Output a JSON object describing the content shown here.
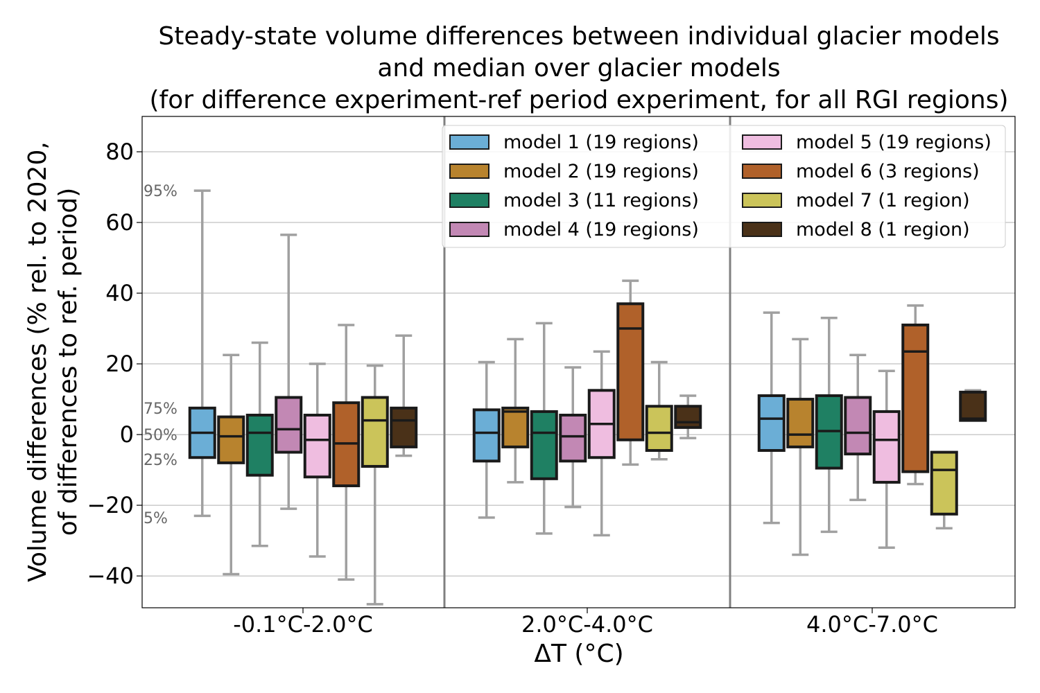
{
  "chart_data": {
    "type": "box",
    "title": [
      "Steady-state volume differences between individual glacier models",
      "and median over glacier models",
      "(for difference experiment-ref period experiment, for all RGI regions)"
    ],
    "xlabel": "ΔT (°C)",
    "ylabel": [
      "Volume differences (% rel. to 2020,",
      "of differences to ref. period)"
    ],
    "ylim": [
      -49,
      90
    ],
    "yticks": [
      80,
      60,
      40,
      20,
      0,
      -20,
      -40
    ],
    "ytick_labels": [
      "80",
      "60",
      "40",
      "20",
      "0",
      "−20",
      "−40"
    ],
    "grid": "horizontal",
    "categories": [
      "-0.1°C-2.0°C",
      "2.0°C-4.0°C",
      "4.0°C-7.0°C"
    ],
    "percentile_labels": [
      {
        "label": "95%",
        "value": 69
      },
      {
        "label": "75%",
        "value": 7.5
      },
      {
        "label": "50%",
        "value": 0
      },
      {
        "label": "25%",
        "value": -7
      },
      {
        "label": "5%",
        "value": -23.5
      }
    ],
    "legend_position": "top-right",
    "series": [
      {
        "name": "model 1 (19 regions)",
        "color": "#6baed6",
        "boxes": [
          {
            "p5": -23,
            "q1": -6.5,
            "median": 0.5,
            "q3": 7.5,
            "p95": 69
          },
          {
            "p5": -23.5,
            "q1": -7.5,
            "median": 0.5,
            "q3": 7,
            "p95": 20.5
          },
          {
            "p5": -25,
            "q1": -4.5,
            "median": 4.5,
            "q3": 11,
            "p95": 34.5
          }
        ]
      },
      {
        "name": "model 2 (19 regions)",
        "color": "#b8832e",
        "boxes": [
          {
            "p5": -39.5,
            "q1": -8,
            "median": -0.5,
            "q3": 5,
            "p95": 22.5
          },
          {
            "p5": -13.5,
            "q1": -3.5,
            "median": 6.5,
            "q3": 7.5,
            "p95": 27
          },
          {
            "p5": -34,
            "q1": -3.5,
            "median": 0,
            "q3": 10,
            "p95": 27
          }
        ]
      },
      {
        "name": "model 3 (11 regions)",
        "color": "#1f8063",
        "boxes": [
          {
            "p5": -31.5,
            "q1": -11.5,
            "median": 0.5,
            "q3": 5.5,
            "p95": 26
          },
          {
            "p5": -28,
            "q1": -12.5,
            "median": 0.5,
            "q3": 6.5,
            "p95": 31.5
          },
          {
            "p5": -27.5,
            "q1": -9.5,
            "median": 1,
            "q3": 11,
            "p95": 33
          }
        ]
      },
      {
        "name": "model 4 (19 regions)",
        "color": "#c288b4",
        "boxes": [
          {
            "p5": -21,
            "q1": -5,
            "median": 1.5,
            "q3": 10.5,
            "p95": 56.5
          },
          {
            "p5": -20.5,
            "q1": -7.5,
            "median": -0.5,
            "q3": 5.5,
            "p95": 19
          },
          {
            "p5": -18.5,
            "q1": -5.5,
            "median": 0.5,
            "q3": 10.5,
            "p95": 22.5
          }
        ]
      },
      {
        "name": "model 5 (19 regions)",
        "color": "#efbde0",
        "boxes": [
          {
            "p5": -34.5,
            "q1": -12,
            "median": -1.5,
            "q3": 5.5,
            "p95": 20
          },
          {
            "p5": -28.5,
            "q1": -6.5,
            "median": 3,
            "q3": 12.5,
            "p95": 23.5
          },
          {
            "p5": -32,
            "q1": -13.5,
            "median": -1.5,
            "q3": 6.5,
            "p95": 18
          }
        ]
      },
      {
        "name": "model 6 (3 regions)",
        "color": "#b0612a",
        "boxes": [
          {
            "p5": -41,
            "q1": -14.5,
            "median": -2.5,
            "q3": 9,
            "p95": 31
          },
          {
            "p5": -8.5,
            "q1": -1.5,
            "median": 30,
            "q3": 37,
            "p95": 43.5
          },
          {
            "p5": -14,
            "q1": -10.5,
            "median": 23.5,
            "q3": 31,
            "p95": 36.5
          }
        ]
      },
      {
        "name": "model 7 (1 region)",
        "color": "#cbc45a",
        "boxes": [
          {
            "p5": -48,
            "q1": -9,
            "median": 4,
            "q3": 10.5,
            "p95": 19.5
          },
          {
            "p5": -7,
            "q1": -4.5,
            "median": 0.5,
            "q3": 8,
            "p95": 20.5
          },
          {
            "p5": -26.5,
            "q1": -22.5,
            "median": -10,
            "q3": -5,
            "p95": -5
          }
        ]
      },
      {
        "name": "model 8 (1 region)",
        "color": "#4a3118",
        "boxes": [
          {
            "p5": -6,
            "q1": -3.5,
            "median": 4,
            "q3": 7.5,
            "p95": 28
          },
          {
            "p5": -1,
            "q1": 2,
            "median": 3.5,
            "q3": 8,
            "p95": 11
          },
          {
            "p5": 4,
            "q1": 4,
            "median": 4.5,
            "q3": 12,
            "p95": 12.5
          }
        ]
      }
    ]
  }
}
